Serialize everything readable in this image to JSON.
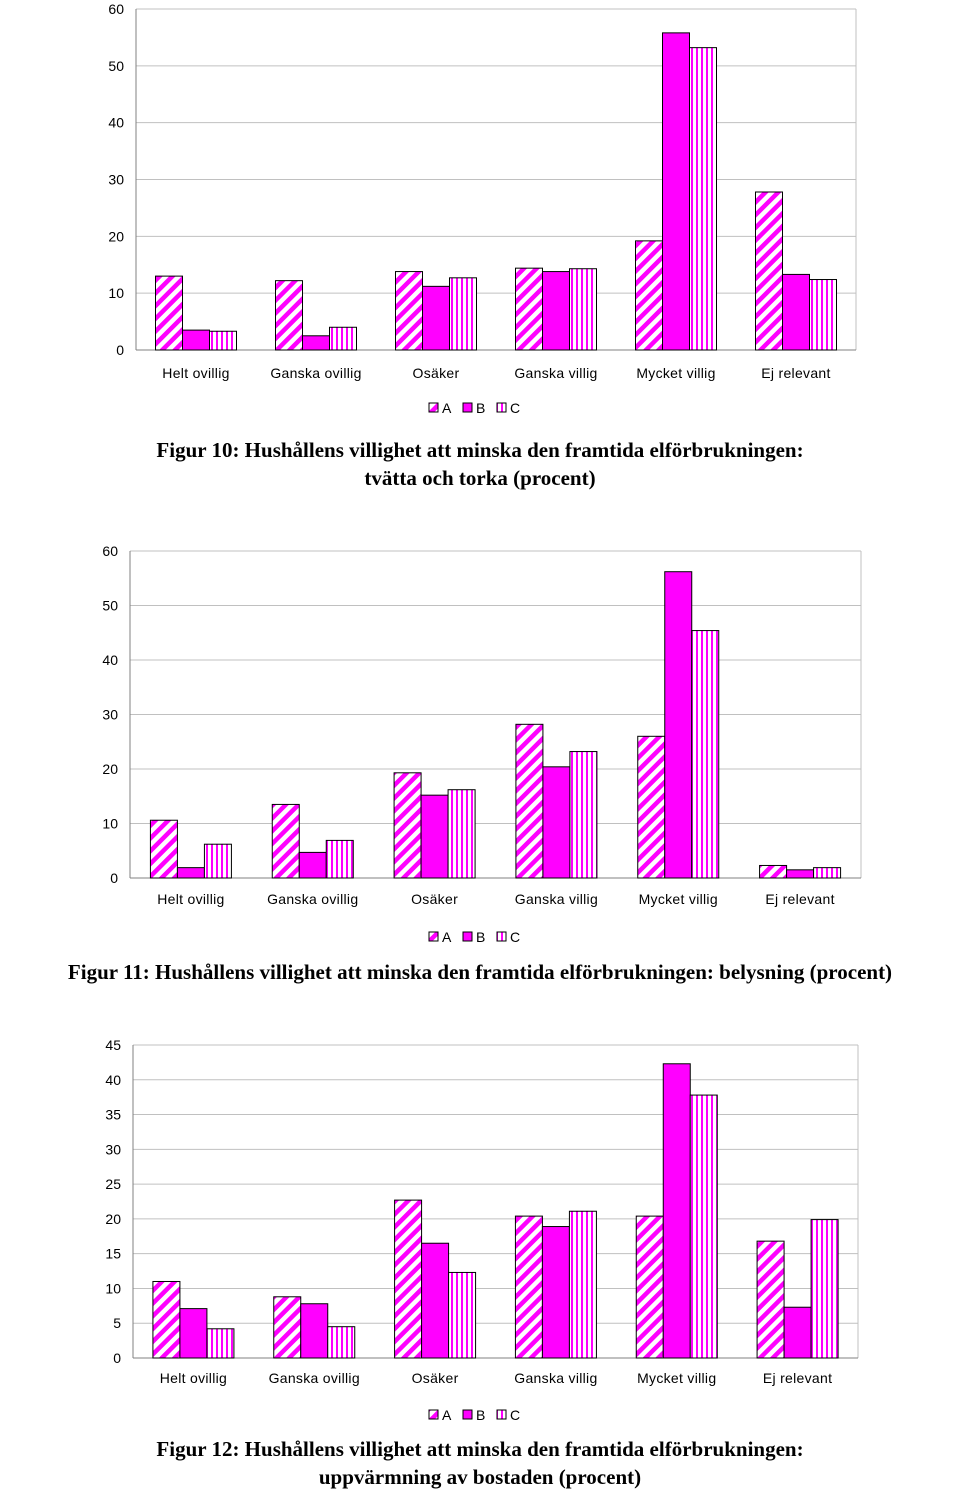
{
  "colors": {
    "bar_fill": "#ff00ff",
    "stripe_fill": "#ffffff",
    "grid": "#c0c0c0",
    "outline": "#000000"
  },
  "patterns": {
    "A": "diagonal-hatch",
    "B": "solid",
    "C": "vertical-stripes"
  },
  "chart_data": [
    {
      "type": "bar",
      "title": "",
      "categories": [
        "Helt ovillig",
        "Ganska ovillig",
        "Osäker",
        "Ganska villig",
        "Mycket villig",
        "Ej relevant"
      ],
      "series": [
        {
          "name": "A",
          "values": [
            13,
            12.2,
            13.8,
            14.4,
            19.2,
            27.8
          ]
        },
        {
          "name": "B",
          "values": [
            3.5,
            2.5,
            11.2,
            13.8,
            55.8,
            13.3
          ]
        },
        {
          "name": "C",
          "values": [
            3.3,
            4,
            12.7,
            14.3,
            53.2,
            12.4
          ]
        }
      ],
      "ylim": [
        0,
        60
      ],
      "yticks": [
        0,
        10,
        20,
        30,
        40,
        50,
        60
      ],
      "grid": true,
      "legend": "bottom-center"
    },
    {
      "type": "bar",
      "title": "",
      "categories": [
        "Helt ovillig",
        "Ganska ovillig",
        "Osäker",
        "Ganska villig",
        "Mycket villig",
        "Ej relevant"
      ],
      "series": [
        {
          "name": "A",
          "values": [
            10.6,
            13.5,
            19.3,
            28.2,
            26,
            2.3
          ]
        },
        {
          "name": "B",
          "values": [
            1.9,
            4.7,
            15.2,
            20.4,
            56.2,
            1.5
          ]
        },
        {
          "name": "C",
          "values": [
            6.2,
            6.9,
            16.2,
            23.2,
            45.4,
            1.9
          ]
        }
      ],
      "ylim": [
        0,
        60
      ],
      "yticks": [
        0,
        10,
        20,
        30,
        40,
        50,
        60
      ],
      "grid": true,
      "legend": "bottom-center"
    },
    {
      "type": "bar",
      "title": "",
      "categories": [
        "Helt ovillig",
        "Ganska ovillig",
        "Osäker",
        "Ganska villig",
        "Mycket villig",
        "Ej relevant"
      ],
      "series": [
        {
          "name": "A",
          "values": [
            11,
            8.8,
            22.7,
            20.4,
            20.4,
            16.8
          ]
        },
        {
          "name": "B",
          "values": [
            7.1,
            7.8,
            16.5,
            18.9,
            42.3,
            7.3
          ]
        },
        {
          "name": "C",
          "values": [
            4.2,
            4.5,
            12.3,
            21.1,
            37.8,
            19.9
          ]
        }
      ],
      "ylim": [
        0,
        45
      ],
      "yticks": [
        0,
        5,
        10,
        15,
        20,
        25,
        30,
        35,
        40,
        45
      ],
      "grid": true,
      "legend": "bottom-center"
    }
  ],
  "captions": [
    {
      "line1": "Figur 10: Hushållens villighet att minska den framtida elförbrukningen:",
      "line2": "tvätta och torka (procent)"
    },
    {
      "line1": "Figur 11: Hushållens villighet att minska den framtida elförbrukningen: belysning (procent)",
      "line2": ""
    },
    {
      "line1": "Figur 12: Hushållens villighet att minska den framtida elförbrukningen:",
      "line2": "uppvärmning av bostaden (procent)"
    }
  ]
}
